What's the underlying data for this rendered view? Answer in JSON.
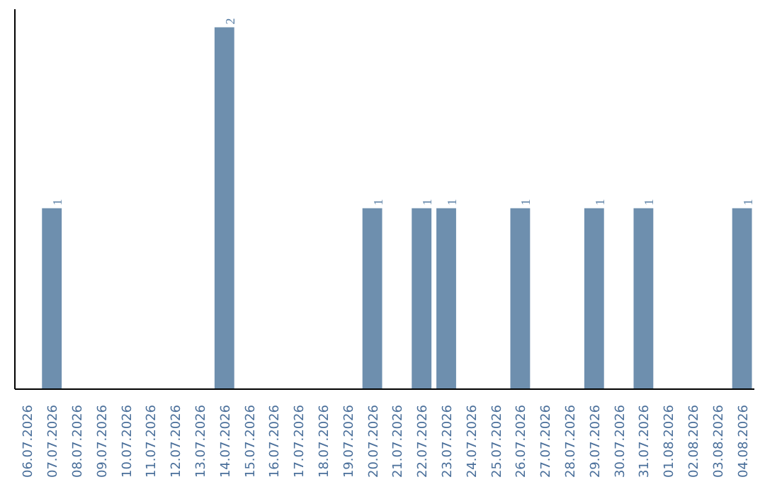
{
  "chart_data": {
    "type": "bar",
    "categories": [
      "06.07.2026",
      "07.07.2026",
      "08.07.2026",
      "09.07.2026",
      "10.07.2026",
      "11.07.2026",
      "12.07.2026",
      "13.07.2026",
      "14.07.2026",
      "15.07.2026",
      "16.07.2026",
      "17.07.2026",
      "18.07.2026",
      "19.07.2026",
      "20.07.2026",
      "21.07.2026",
      "22.07.2026",
      "23.07.2026",
      "24.07.2026",
      "25.07.2026",
      "26.07.2026",
      "27.07.2026",
      "28.07.2026",
      "29.07.2026",
      "30.07.2026",
      "31.07.2026",
      "01.08.2026",
      "02.08.2026",
      "03.08.2026",
      "04.08.2026"
    ],
    "values": [
      0,
      1,
      0,
      0,
      0,
      0,
      0,
      0,
      2,
      0,
      0,
      0,
      0,
      0,
      1,
      0,
      1,
      1,
      0,
      0,
      1,
      0,
      0,
      1,
      0,
      1,
      0,
      0,
      0,
      1
    ],
    "value_labels": [
      null,
      "1",
      null,
      null,
      null,
      null,
      null,
      null,
      "2",
      null,
      null,
      null,
      null,
      null,
      "1",
      null,
      "1",
      "1",
      null,
      null,
      "1",
      null,
      null,
      "1",
      null,
      "1",
      null,
      null,
      null,
      "1"
    ],
    "color": "#6e8fae",
    "grid": false,
    "tick_labels": "x"
  }
}
